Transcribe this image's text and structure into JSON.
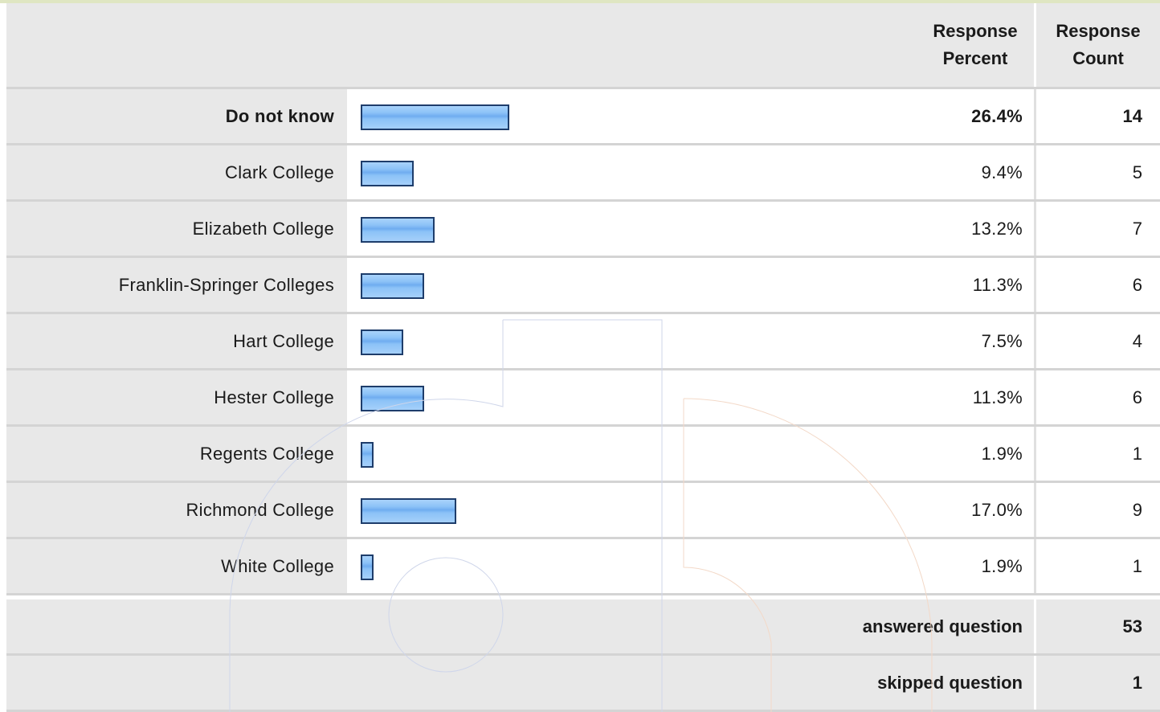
{
  "table": {
    "header": {
      "response_percent": "Response Percent",
      "response_percent_line1": "Response",
      "response_percent_line2": "Percent",
      "response_count_line1": "Response",
      "response_count_line2": "Count"
    },
    "rows": [
      {
        "label": "Do not know",
        "percent_text": "26.4%",
        "count": "14",
        "fraction": 0.264,
        "bold": true
      },
      {
        "label": "Clark College",
        "percent_text": "9.4%",
        "count": "5",
        "fraction": 0.094
      },
      {
        "label": "Elizabeth College",
        "percent_text": "13.2%",
        "count": "7",
        "fraction": 0.132
      },
      {
        "label": "Franklin-Springer Colleges",
        "percent_text": "11.3%",
        "count": "6",
        "fraction": 0.113
      },
      {
        "label": "Hart College",
        "percent_text": "7.5%",
        "count": "4",
        "fraction": 0.075
      },
      {
        "label": "Hester College",
        "percent_text": "11.3%",
        "count": "6",
        "fraction": 0.113
      },
      {
        "label": "Regents College",
        "percent_text": "1.9%",
        "count": "1",
        "fraction": 0.019
      },
      {
        "label": "Richmond College",
        "percent_text": "17.0%",
        "count": "9",
        "fraction": 0.17
      },
      {
        "label": "White College",
        "percent_text": "1.9%",
        "count": "1",
        "fraction": 0.019
      }
    ],
    "answered": {
      "label": "answered question",
      "value": "53"
    },
    "skipped": {
      "label": "skipped question",
      "value": "1"
    }
  },
  "colors": {
    "bar_fill": "#8cc2f7",
    "bar_border": "#1e3d6b",
    "header_bg": "#e8e8e8"
  }
}
